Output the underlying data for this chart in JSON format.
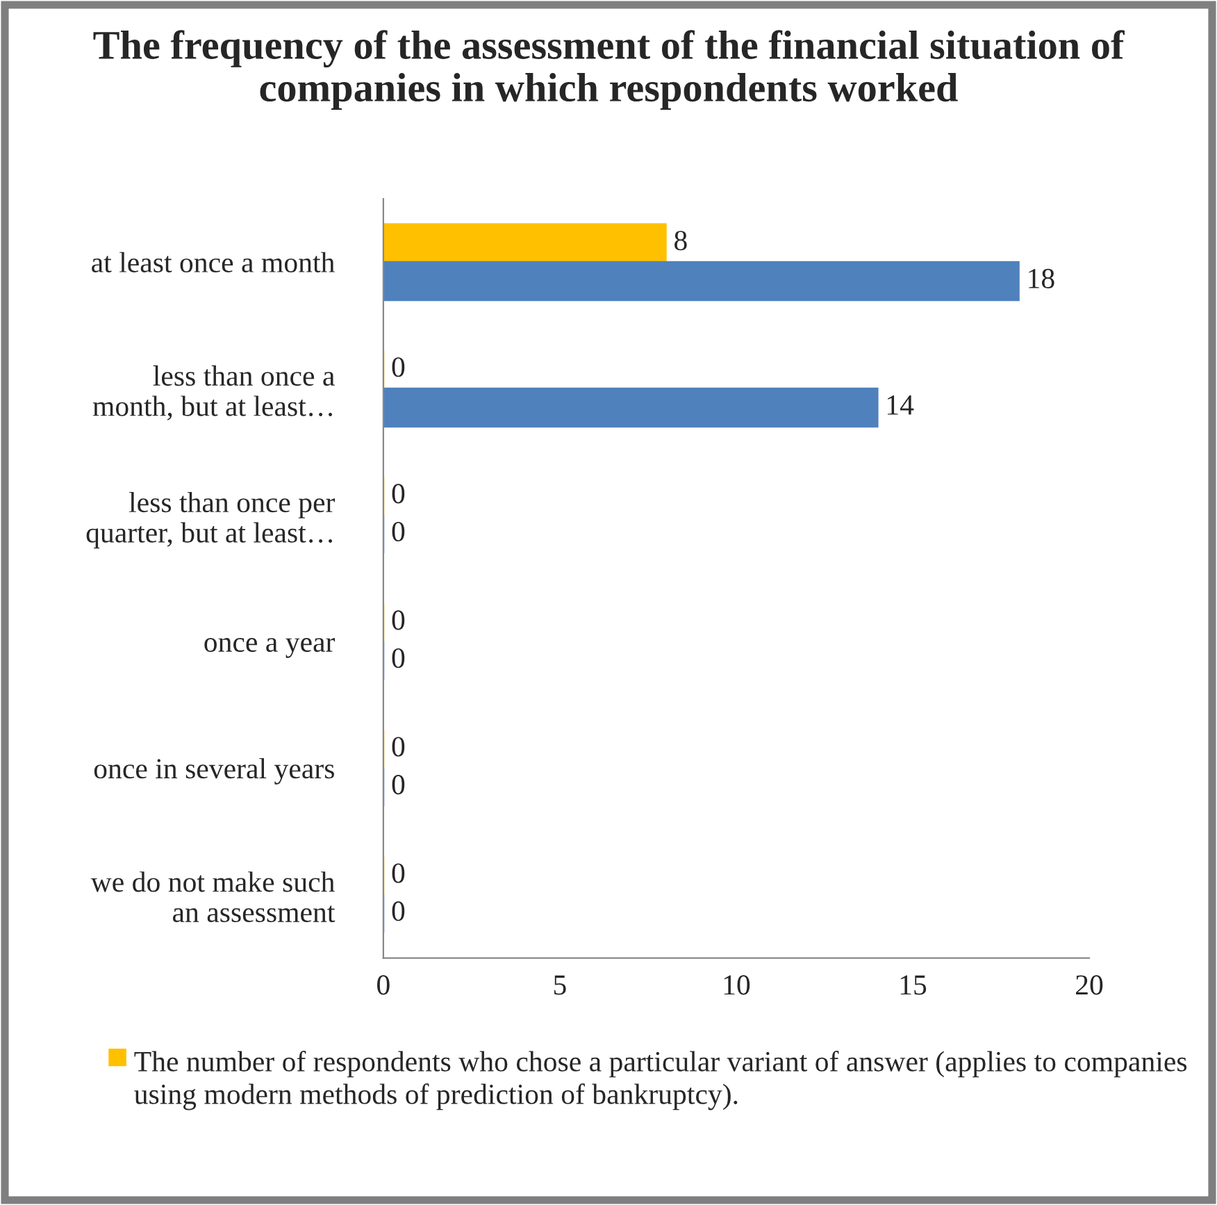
{
  "chart_data": {
    "type": "bar",
    "orientation": "horizontal",
    "title": "The frequency of the assessment of the financial situation of companies in which respondents worked",
    "categories": [
      "at least once a month",
      "less than once a\nmonth, but at least…",
      "less than once per\nquarter, but at least…",
      "once a year",
      "once in several years",
      "we do not make such\nan assessment"
    ],
    "series": [
      {
        "name": "The number of respondents who chose a particular variant of answer (applies to companies using modern methods of prediction of bankruptcy).",
        "color": "#ffc000",
        "values": [
          8,
          0,
          0,
          0,
          0,
          0
        ]
      },
      {
        "color": "#4f81bd",
        "values": [
          18,
          14,
          0,
          0,
          0,
          0
        ]
      }
    ],
    "xlim": [
      0,
      20
    ],
    "xticks": [
      0,
      5,
      10,
      15,
      20
    ],
    "data_labels": true,
    "grid": false,
    "legend": "bottom"
  }
}
